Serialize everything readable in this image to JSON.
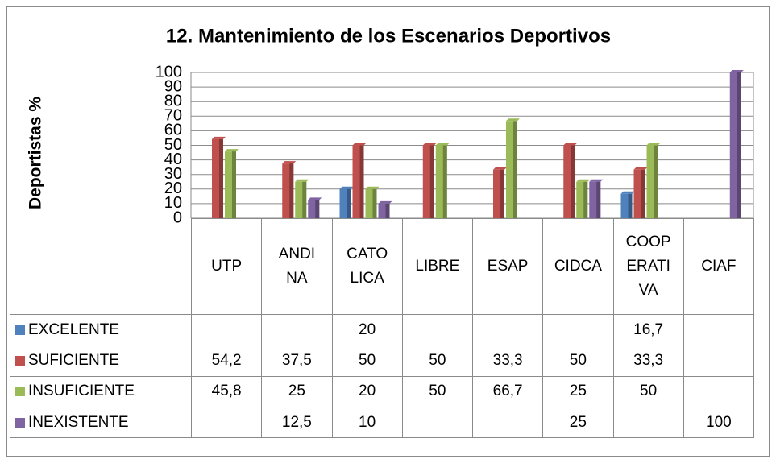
{
  "chart_data": {
    "type": "bar",
    "title": "12. Mantenimiento de los Escenarios Deportivos",
    "y_label": "Deportistas %",
    "categories": [
      "UTP",
      "ANDINA",
      "CATOLICA",
      "LIBRE",
      "ESAP",
      "CIDCA",
      "COOPERATIVA",
      "CIAF"
    ],
    "series": [
      {
        "name": "EXCELENTE",
        "color": "#4f81bd",
        "values": [
          null,
          null,
          20,
          null,
          null,
          null,
          16.7,
          null
        ],
        "value_labels": [
          null,
          null,
          "20",
          null,
          null,
          null,
          "16,7",
          null
        ]
      },
      {
        "name": "SUFICIENTE",
        "color": "#c0504d",
        "values": [
          54.2,
          37.5,
          50,
          50,
          33.3,
          50,
          33.3,
          null
        ],
        "value_labels": [
          "54,2",
          "37,5",
          "50",
          "50",
          "33,3",
          "50",
          "33,3",
          null
        ]
      },
      {
        "name": "INSUFICIENTE",
        "color": "#9bbb59",
        "values": [
          45.8,
          25,
          20,
          50,
          66.7,
          25,
          50,
          null
        ],
        "value_labels": [
          "45,8",
          "25",
          "20",
          "50",
          "66,7",
          "25",
          "50",
          null
        ]
      },
      {
        "name": "INEXISTENTE",
        "color": "#8064a2",
        "values": [
          null,
          12.5,
          10,
          null,
          null,
          25,
          null,
          100
        ],
        "value_labels": [
          null,
          "12,5",
          "10",
          null,
          null,
          "25",
          null,
          "100"
        ]
      }
    ],
    "ylim": [
      0,
      100
    ],
    "yticks": [
      0,
      10,
      20,
      30,
      40,
      50,
      60,
      70,
      80,
      90,
      100
    ],
    "grid": true,
    "legend": "data-table"
  }
}
